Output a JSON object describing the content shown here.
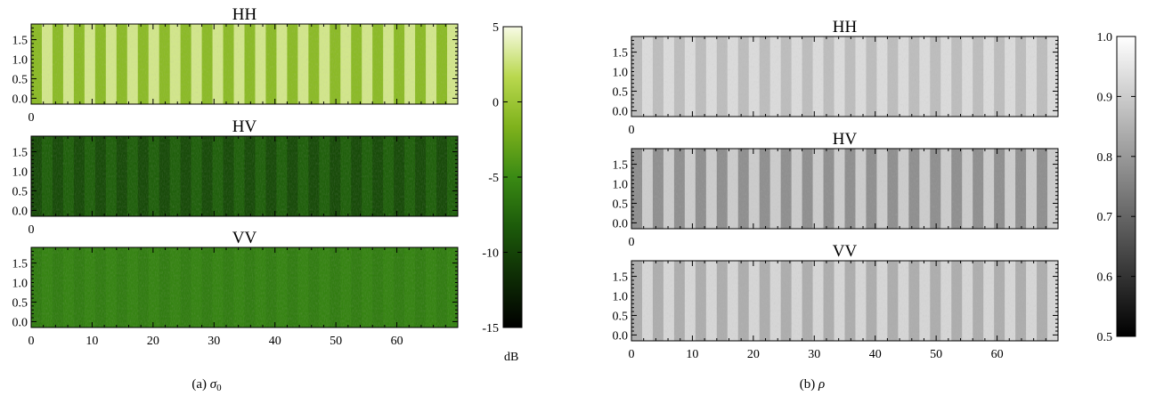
{
  "figure": {
    "caption_a_prefix": "(a) ",
    "caption_a_symbol": "σ",
    "caption_a_sub": "0",
    "caption_b_prefix": "(b) ",
    "caption_b_symbol": "ρ"
  },
  "chart_data": [
    {
      "type": "heatmap",
      "panel": "a",
      "quantity": "sigma0",
      "xlim": [
        0,
        70
      ],
      "ylim": [
        -0.15,
        1.9
      ],
      "x_ticks": [
        "0",
        "10",
        "20",
        "30",
        "40",
        "50",
        "60"
      ],
      "y_ticks": [
        "0.0",
        "0.5",
        "1.0",
        "1.5"
      ],
      "stripes": 20,
      "subplots": [
        {
          "title": "HH",
          "level_dark": -1.0,
          "level_light": 3.0,
          "stripe_contrast": "high"
        },
        {
          "title": "HV",
          "level_dark": -9.5,
          "level_light": -8.0,
          "stripe_contrast": "medium"
        },
        {
          "title": "VV",
          "level_dark": -6.0,
          "level_light": -5.5,
          "stripe_contrast": "none"
        }
      ],
      "colorbar": {
        "range": [
          -15,
          5
        ],
        "ticks": [
          "5",
          "0",
          "-5",
          "-10",
          "-15"
        ],
        "unit": "dB",
        "colors": [
          "#000000",
          "#0e2c05",
          "#1c5a0a",
          "#3a8a14",
          "#7fb21c",
          "#b9d84e",
          "#f8fbe6"
        ]
      }
    },
    {
      "type": "heatmap",
      "panel": "b",
      "quantity": "rho",
      "xlim": [
        0,
        70
      ],
      "ylim": [
        -0.15,
        1.9
      ],
      "x_ticks": [
        "0",
        "10",
        "20",
        "30",
        "40",
        "50",
        "60"
      ],
      "y_ticks": [
        "0.0",
        "0.5",
        "1.0",
        "1.5"
      ],
      "stripes": 20,
      "subplots": [
        {
          "title": "HH",
          "level_dark": 0.87,
          "level_light": 0.93,
          "stripe_contrast": "low"
        },
        {
          "title": "HV",
          "level_dark": 0.78,
          "level_light": 0.9,
          "stripe_contrast": "high"
        },
        {
          "title": "VV",
          "level_dark": 0.84,
          "level_light": 0.92,
          "stripe_contrast": "medium"
        }
      ],
      "colorbar": {
        "range": [
          0.5,
          1.0
        ],
        "ticks": [
          "1.0",
          "0.9",
          "0.8",
          "0.7",
          "0.6",
          "0.5"
        ],
        "unit": "",
        "colors": [
          "#000000",
          "#ffffff"
        ]
      }
    }
  ]
}
